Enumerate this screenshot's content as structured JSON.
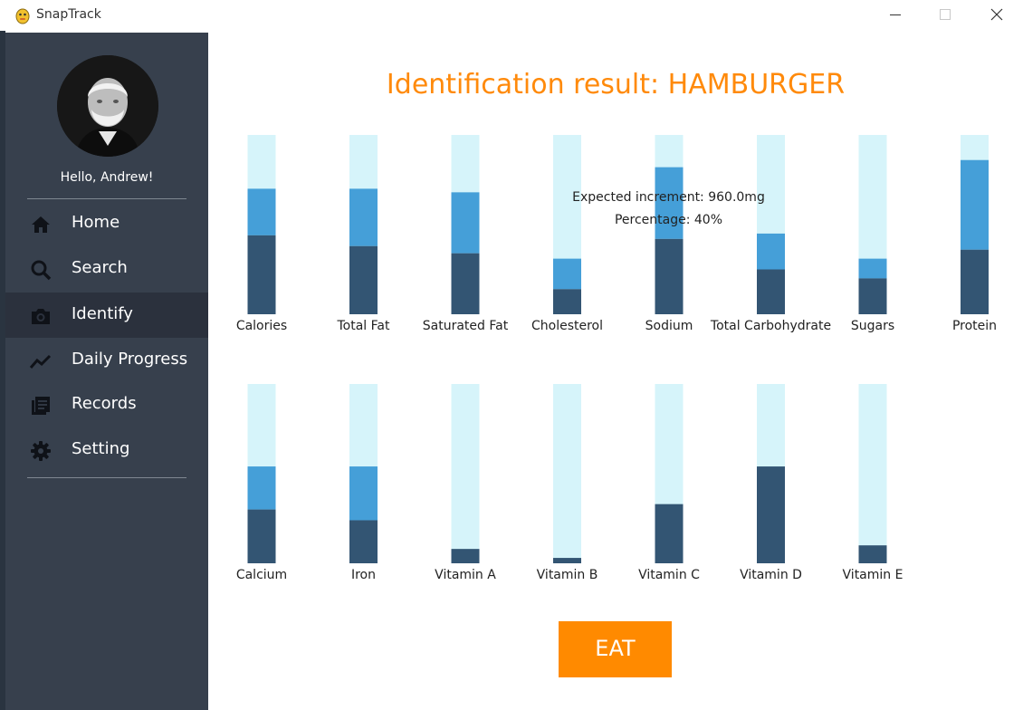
{
  "window": {
    "title": "SnapTrack"
  },
  "sidebar": {
    "greeting": "Hello, Andrew!",
    "items": [
      {
        "label": "Home",
        "icon": "home-icon"
      },
      {
        "label": "Search",
        "icon": "search-icon"
      },
      {
        "label": "Identify",
        "icon": "camera-icon",
        "active": true
      },
      {
        "label": "Daily Progress",
        "icon": "trend-icon"
      },
      {
        "label": "Records",
        "icon": "records-icon"
      },
      {
        "label": "Setting",
        "icon": "gear-icon"
      }
    ]
  },
  "main": {
    "title": "Identification result: HAMBURGER",
    "tooltip": {
      "line1": "Expected increment: 960.0mg",
      "line2": "Percentage: 40%"
    },
    "eat_label": "EAT"
  },
  "colors": {
    "accent": "#ff8a00",
    "sidebar": "#37404d",
    "bar_remaining": "#d6f4fa",
    "bar_increment": "#459fd8",
    "bar_consumed": "#335573"
  },
  "chart_data": {
    "type": "bar",
    "stacked": true,
    "ylim": [
      0,
      100
    ],
    "series_meaning": [
      "consumed",
      "increment",
      "remaining"
    ],
    "rows": [
      [
        {
          "name": "Calories",
          "consumed": 44,
          "increment": 26
        },
        {
          "name": "Total Fat",
          "consumed": 38,
          "increment": 32
        },
        {
          "name": "Saturated Fat",
          "consumed": 34,
          "increment": 34
        },
        {
          "name": "Cholesterol",
          "consumed": 14,
          "increment": 17
        },
        {
          "name": "Sodium",
          "consumed": 42,
          "increment": 40
        },
        {
          "name": "Total Carbohydrate",
          "consumed": 25,
          "increment": 20
        },
        {
          "name": "Sugars",
          "consumed": 20,
          "increment": 11
        },
        {
          "name": "Protein",
          "consumed": 36,
          "increment": 50
        }
      ],
      [
        {
          "name": "Calcium",
          "consumed": 30,
          "increment": 24
        },
        {
          "name": "Iron",
          "consumed": 24,
          "increment": 30
        },
        {
          "name": "Vitamin A",
          "consumed": 8,
          "increment": 0
        },
        {
          "name": "Vitamin B",
          "consumed": 3,
          "increment": 0
        },
        {
          "name": "Vitamin C",
          "consumed": 33,
          "increment": 0
        },
        {
          "name": "Vitamin D",
          "consumed": 54,
          "increment": 0
        },
        {
          "name": "Vitamin E",
          "consumed": 10,
          "increment": 0
        }
      ]
    ]
  }
}
